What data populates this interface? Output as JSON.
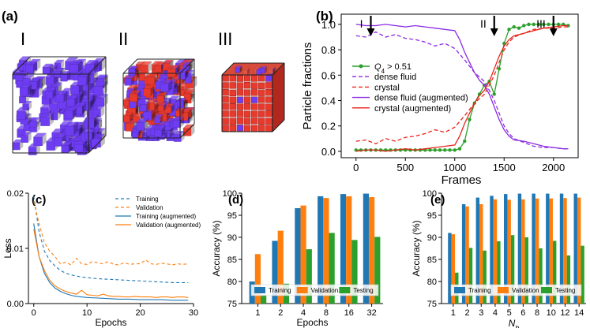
{
  "panels": {
    "a": "(a)",
    "b": "(b)",
    "c": "(c)",
    "d": "(d)",
    "e": "(e)"
  },
  "snapshots": [
    {
      "label": "I"
    },
    {
      "label": "II"
    },
    {
      "label": "III"
    }
  ],
  "colors": {
    "blue": "#1f77b4",
    "orange": "#ff7f0e",
    "green": "#2ca02c",
    "purple": "#8b2be2",
    "red": "#e8231b",
    "cube_blue": "#6e3cf2",
    "cube_red": "#e8392d"
  },
  "chart_data": [
    {
      "id": "b",
      "type": "line",
      "xlabel": "Frames",
      "ylabel": "Particle fractions",
      "xlim": [
        -150,
        2250
      ],
      "ylim": [
        -0.05,
        1.08
      ],
      "xticks": [
        "0",
        "500",
        "1000",
        "1500",
        "2000"
      ],
      "yticks": [
        "0.0",
        "0.2",
        "0.4",
        "0.6",
        "0.8",
        "1.0"
      ],
      "markers": [
        {
          "label": "I",
          "x": 150
        },
        {
          "label": "II",
          "x": 1400
        },
        {
          "label": "III",
          "x": 2000
        }
      ],
      "series": [
        {
          "name": "Q4 > 0.51",
          "label_pre": "Q",
          "label_sub": "4",
          "label_post": " > 0.51",
          "style": "green-dots",
          "x": [
            0,
            50,
            100,
            150,
            200,
            250,
            300,
            350,
            400,
            450,
            500,
            550,
            600,
            650,
            700,
            750,
            800,
            850,
            900,
            950,
            1000,
            1050,
            1100,
            1150,
            1200,
            1250,
            1300,
            1350,
            1400,
            1450,
            1500,
            1550,
            1600,
            1650,
            1700,
            1750,
            1800,
            1850,
            1900,
            1950,
            2000,
            2050,
            2100,
            2150
          ],
          "y": [
            0.01,
            0.01,
            0.01,
            0.01,
            0.01,
            0.01,
            0.01,
            0.01,
            0.01,
            0.01,
            0.01,
            0.01,
            0.01,
            0.01,
            0.01,
            0.01,
            0.01,
            0.01,
            0.01,
            0.01,
            0.01,
            0.02,
            0.08,
            0.25,
            0.38,
            0.45,
            0.52,
            0.55,
            0.45,
            0.65,
            0.85,
            0.96,
            0.98,
            0.97,
            0.99,
            1.0,
            1.0,
            1.0,
            1.0,
            1.0,
            1.0,
            1.0,
            1.0,
            0.99
          ]
        },
        {
          "name": "dense fluid",
          "style": "purple-dashed",
          "x": [
            0,
            100,
            200,
            300,
            400,
            500,
            600,
            700,
            800,
            900,
            1000,
            1100,
            1200,
            1300,
            1350,
            1400,
            1450,
            1500,
            1550,
            1600,
            1700,
            1800,
            1900,
            2000,
            2100,
            2150
          ],
          "y": [
            0.91,
            0.9,
            0.94,
            0.9,
            0.92,
            0.89,
            0.88,
            0.86,
            0.83,
            0.85,
            0.81,
            0.72,
            0.62,
            0.55,
            0.48,
            0.4,
            0.3,
            0.2,
            0.14,
            0.1,
            0.07,
            0.04,
            0.03,
            0.03,
            0.02,
            0.02
          ]
        },
        {
          "name": "crystal",
          "style": "red-dashed",
          "x": [
            0,
            100,
            200,
            300,
            400,
            500,
            600,
            700,
            800,
            900,
            1000,
            1100,
            1200,
            1300,
            1350,
            1400,
            1450,
            1500,
            1550,
            1600,
            1700,
            1800,
            1900,
            2000,
            2100,
            2150
          ],
          "y": [
            0.08,
            0.09,
            0.06,
            0.1,
            0.08,
            0.11,
            0.12,
            0.14,
            0.17,
            0.15,
            0.19,
            0.28,
            0.38,
            0.45,
            0.52,
            0.6,
            0.7,
            0.8,
            0.86,
            0.9,
            0.93,
            0.96,
            0.97,
            0.97,
            0.98,
            0.98
          ]
        },
        {
          "name": "dense fluid (augmented)",
          "style": "purple-solid",
          "x": [
            0,
            100,
            200,
            300,
            400,
            500,
            600,
            700,
            800,
            900,
            1000,
            1050,
            1100,
            1150,
            1200,
            1250,
            1300,
            1350,
            1400,
            1450,
            1500,
            1550,
            1600,
            1700,
            1800,
            1900,
            2000,
            2100,
            2150
          ],
          "y": [
            1.0,
            0.99,
            0.99,
            1.0,
            0.99,
            0.98,
            0.99,
            0.98,
            0.97,
            0.96,
            0.95,
            0.88,
            0.78,
            0.7,
            0.62,
            0.56,
            0.52,
            0.45,
            0.35,
            0.25,
            0.17,
            0.12,
            0.09,
            0.08,
            0.06,
            0.04,
            0.03,
            0.02,
            0.02
          ]
        },
        {
          "name": "crystal (augmented)",
          "style": "red-solid",
          "x": [
            0,
            100,
            200,
            300,
            400,
            500,
            600,
            700,
            800,
            900,
            1000,
            1050,
            1100,
            1150,
            1200,
            1250,
            1300,
            1350,
            1400,
            1450,
            1500,
            1550,
            1600,
            1700,
            1800,
            1900,
            2000,
            2100,
            2150
          ],
          "y": [
            0.0,
            0.01,
            0.01,
            0.0,
            0.01,
            0.02,
            0.01,
            0.02,
            0.03,
            0.04,
            0.05,
            0.12,
            0.22,
            0.3,
            0.38,
            0.44,
            0.48,
            0.55,
            0.65,
            0.75,
            0.83,
            0.88,
            0.91,
            0.93,
            0.95,
            0.97,
            0.98,
            0.99,
            0.99
          ]
        }
      ]
    },
    {
      "id": "c",
      "type": "line",
      "xlabel": "Epochs",
      "ylabel": "Loss",
      "xlim": [
        -1,
        30
      ],
      "ylim": [
        0,
        0.02
      ],
      "xticks": [
        "0",
        "10",
        "20",
        "30"
      ],
      "yticks": [
        "0.00",
        "0.01",
        "0.02"
      ],
      "series": [
        {
          "name": "Training",
          "style": "blue-dashed",
          "x": [
            0,
            1,
            2,
            3,
            4,
            5,
            6,
            7,
            8,
            9,
            10,
            12,
            14,
            16,
            18,
            20,
            22,
            24,
            26,
            28,
            29
          ],
          "y": [
            0.0195,
            0.013,
            0.0095,
            0.0078,
            0.0068,
            0.006,
            0.0055,
            0.0052,
            0.005,
            0.0048,
            0.0047,
            0.0045,
            0.0044,
            0.0043,
            0.0042,
            0.0041,
            0.004,
            0.0039,
            0.0038,
            0.0038,
            0.0038
          ]
        },
        {
          "name": "Validation",
          "style": "orange-dashed",
          "x": [
            0,
            1,
            2,
            3,
            4,
            5,
            6,
            7,
            8,
            9,
            10,
            11,
            12,
            13,
            14,
            15,
            16,
            17,
            18,
            19,
            20,
            21,
            22,
            23,
            24,
            25,
            26,
            27,
            28,
            29
          ],
          "y": [
            0.0185,
            0.0145,
            0.011,
            0.0095,
            0.0085,
            0.0072,
            0.0075,
            0.007,
            0.0082,
            0.0072,
            0.0071,
            0.0076,
            0.0074,
            0.0072,
            0.0076,
            0.0071,
            0.007,
            0.0074,
            0.0071,
            0.0072,
            0.0072,
            0.0079,
            0.0072,
            0.0071,
            0.0073,
            0.0072,
            0.007,
            0.0072,
            0.0071,
            0.0072
          ]
        },
        {
          "name": "Training (augmented)",
          "style": "blue-solid",
          "x": [
            0,
            1,
            2,
            3,
            4,
            5,
            6,
            7,
            8,
            10,
            12,
            14,
            16,
            18,
            20,
            22,
            24,
            26,
            28,
            29
          ],
          "y": [
            0.0145,
            0.0085,
            0.0055,
            0.0038,
            0.0028,
            0.0022,
            0.0018,
            0.0015,
            0.0013,
            0.0011,
            0.001,
            0.0009,
            0.0008,
            0.0008,
            0.0007,
            0.0007,
            0.0007,
            0.0006,
            0.0006,
            0.0006
          ]
        },
        {
          "name": "Validation (augmented)",
          "style": "orange-solid",
          "x": [
            0,
            1,
            2,
            3,
            4,
            5,
            6,
            7,
            8,
            9,
            10,
            11,
            12,
            13,
            14,
            15,
            16,
            17,
            18,
            19,
            20,
            21,
            22,
            23,
            24,
            25,
            26,
            27,
            28,
            29
          ],
          "y": [
            0.0135,
            0.0085,
            0.006,
            0.0042,
            0.0032,
            0.0026,
            0.0022,
            0.0019,
            0.0017,
            0.0024,
            0.0016,
            0.0015,
            0.0014,
            0.0017,
            0.0014,
            0.0013,
            0.0013,
            0.0012,
            0.0012,
            0.0013,
            0.0012,
            0.0012,
            0.0012,
            0.0011,
            0.0012,
            0.0012,
            0.0011,
            0.0012,
            0.0012,
            0.0011
          ]
        }
      ]
    },
    {
      "id": "d",
      "type": "bar",
      "xlabel": "Epochs",
      "ylabel": "Accuracy (%)",
      "ylim": [
        75,
        100
      ],
      "yticks": [
        "75",
        "80",
        "85",
        "90",
        "95",
        "100"
      ],
      "categories": [
        "1",
        "2",
        "4",
        "8",
        "16",
        "32"
      ],
      "series": [
        {
          "name": "Training",
          "color": "blue",
          "values": [
            80.0,
            89.2,
            96.6,
            99.3,
            99.8,
            99.9
          ]
        },
        {
          "name": "Validation",
          "color": "orange",
          "values": [
            86.2,
            91.5,
            97.2,
            98.9,
            99.3,
            99.1
          ]
        },
        {
          "name": "Testing",
          "color": "green",
          "values": [
            77.0,
            79.5,
            87.3,
            91.0,
            89.4,
            90.1
          ]
        }
      ]
    },
    {
      "id": "e",
      "type": "bar",
      "xlabel": "N",
      "xlabel_sub": "b",
      "ylabel": "Accuracy (%)",
      "ylim": [
        75,
        100
      ],
      "yticks": [
        "75",
        "80",
        "85",
        "90",
        "95",
        "100"
      ],
      "categories": [
        "1",
        "2",
        "3",
        "4",
        "5",
        "6",
        "8",
        "10",
        "12",
        "14"
      ],
      "series": [
        {
          "name": "Training",
          "color": "blue",
          "values": [
            91.0,
            97.5,
            99.0,
            99.4,
            99.8,
            99.9,
            99.9,
            99.9,
            99.9,
            99.9
          ]
        },
        {
          "name": "Validation",
          "color": "orange",
          "values": [
            90.7,
            97.0,
            97.5,
            98.6,
            98.5,
            98.6,
            98.8,
            98.8,
            98.9,
            99.0
          ]
        },
        {
          "name": "Testing",
          "color": "green",
          "values": [
            82.0,
            87.6,
            87.0,
            89.1,
            90.5,
            90.0,
            87.5,
            89.2,
            85.9,
            88.1
          ]
        }
      ]
    }
  ]
}
